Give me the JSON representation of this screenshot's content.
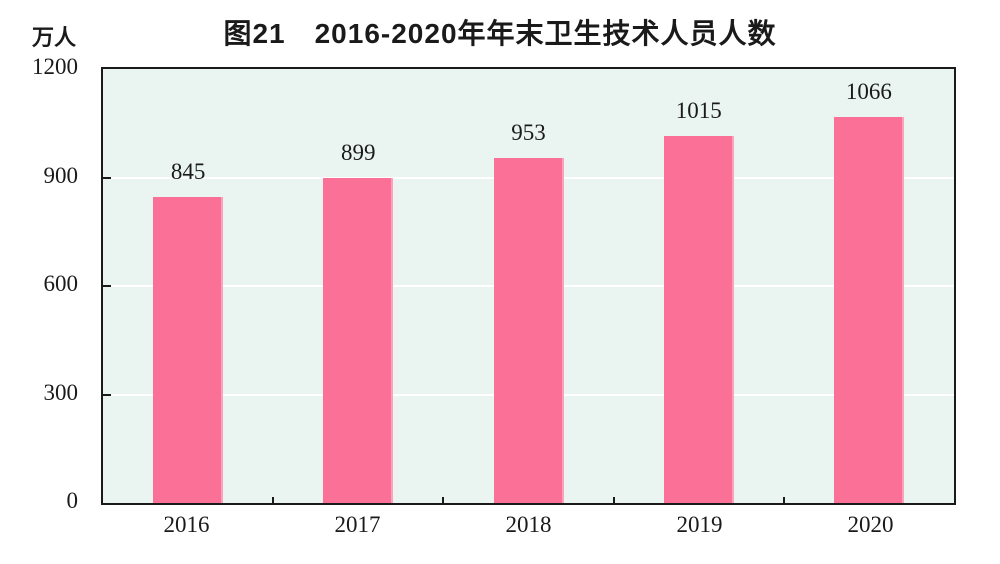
{
  "title": "图21　2016-2020年年末卫生技术人员人数",
  "chart_data": {
    "type": "bar",
    "title": "图21　2016-2020年年末卫生技术人员人数",
    "categories": [
      "2016",
      "2017",
      "2018",
      "2019",
      "2020"
    ],
    "values": [
      845,
      899,
      953,
      1015,
      1066
    ],
    "xlabel": "",
    "ylabel": "万人",
    "ylim": [
      0,
      1200
    ],
    "yticks": [
      0,
      300,
      600,
      900,
      1200
    ],
    "grid": true,
    "legend": false,
    "colors": {
      "bar": "#FB7096",
      "plot_background": "#EAF5F1",
      "gridline": "#FFFFFF",
      "axis": "#1A1A1A",
      "text": "#1A1A1A"
    }
  }
}
